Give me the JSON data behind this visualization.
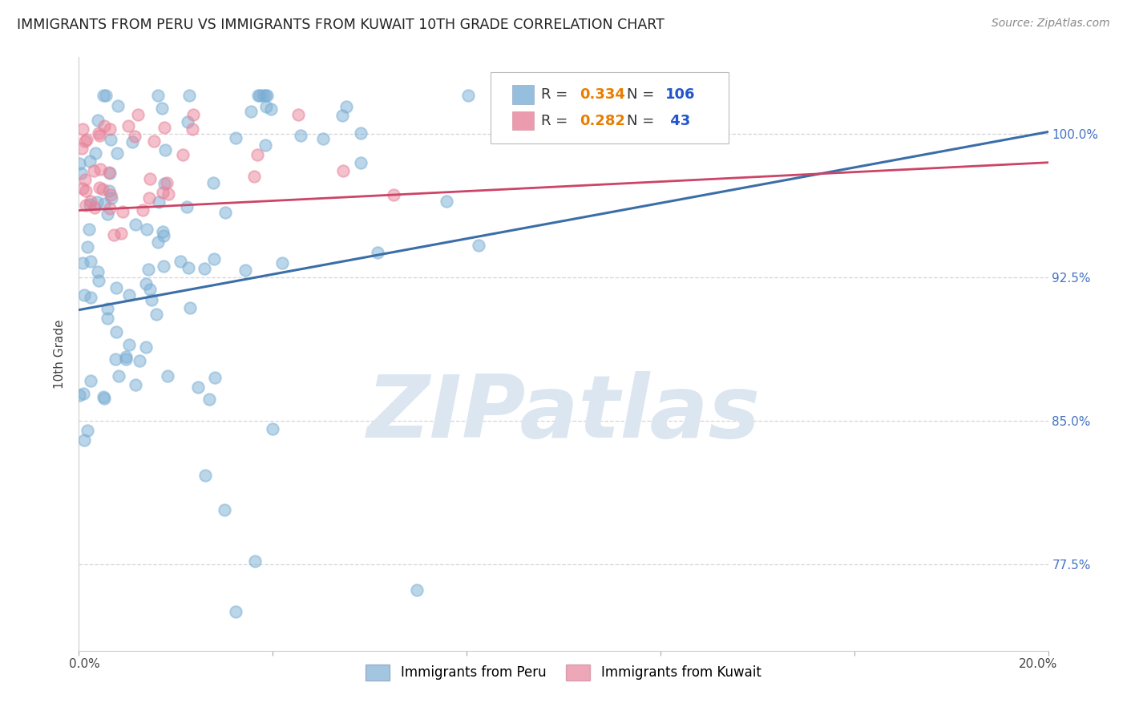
{
  "title": "IMMIGRANTS FROM PERU VS IMMIGRANTS FROM KUWAIT 10TH GRADE CORRELATION CHART",
  "source": "Source: ZipAtlas.com",
  "ylabel": "10th Grade",
  "ytick_labels": [
    "77.5%",
    "85.0%",
    "92.5%",
    "100.0%"
  ],
  "ytick_values": [
    0.775,
    0.85,
    0.925,
    1.0
  ],
  "xlim": [
    0.0,
    0.2
  ],
  "ylim": [
    0.73,
    1.04
  ],
  "peru_R": 0.334,
  "peru_N": 106,
  "kuwait_R": 0.282,
  "kuwait_N": 43,
  "peru_color": "#7bafd4",
  "peru_color_alpha": 0.5,
  "peru_line_color": "#3b6ea8",
  "kuwait_color": "#e8829a",
  "kuwait_color_alpha": 0.5,
  "kuwait_line_color": "#cc4466",
  "watermark_text": "ZIPatlas",
  "watermark_color": "#dce6f0",
  "background_color": "#ffffff",
  "grid_color": "#cccccc",
  "title_fontsize": 12.5,
  "axis_label_fontsize": 11,
  "tick_fontsize": 11,
  "legend_fontsize": 13,
  "source_fontsize": 10,
  "right_tick_color": "#4472c4",
  "legend_R_color": "#e87d00",
  "legend_N_color": "#2255cc",
  "legend_peru_R_val": "0.334",
  "legend_peru_N_val": "106",
  "legend_kuwait_R_val": "0.282",
  "legend_kuwait_N_val": " 43",
  "peru_line_y0": 0.908,
  "peru_line_y1": 1.001,
  "kuwait_line_y0": 0.96,
  "kuwait_line_y1": 0.985
}
